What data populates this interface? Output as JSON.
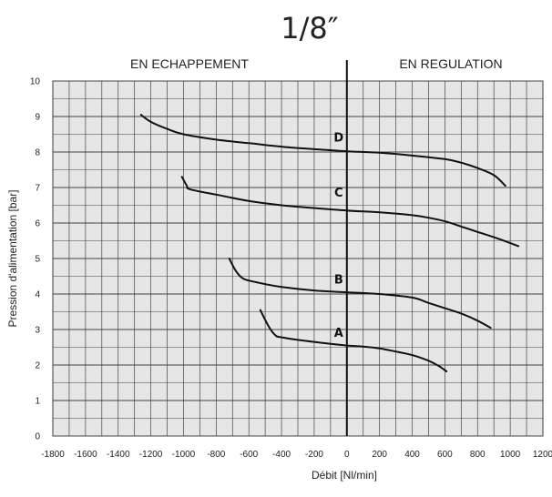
{
  "chart_data": {
    "type": "line",
    "title": "1/8″",
    "xlabel": "Débit [Nl/min]",
    "ylabel": "Pression d'alimentation [bar]",
    "xlim": [
      -1800,
      1200
    ],
    "ylim": [
      0,
      10
    ],
    "x_ticks": [
      -1800,
      -1600,
      -1400,
      -1200,
      -1000,
      -800,
      -600,
      -400,
      -200,
      0,
      200,
      400,
      600,
      800,
      1000,
      1200
    ],
    "y_ticks": [
      0,
      1,
      2,
      3,
      4,
      5,
      6,
      7,
      8,
      9,
      10
    ],
    "grid": true,
    "regions": {
      "left": "EN ECHAPPEMENT",
      "right": "EN REGULATION"
    },
    "series": [
      {
        "name": "D",
        "points": [
          [
            -1260,
            9.05
          ],
          [
            -1200,
            8.85
          ],
          [
            -1100,
            8.65
          ],
          [
            -1000,
            8.5
          ],
          [
            -800,
            8.35
          ],
          [
            -600,
            8.25
          ],
          [
            -400,
            8.15
          ],
          [
            -200,
            8.08
          ],
          [
            0,
            8.02
          ],
          [
            200,
            7.98
          ],
          [
            400,
            7.9
          ],
          [
            600,
            7.8
          ],
          [
            700,
            7.7
          ],
          [
            800,
            7.55
          ],
          [
            900,
            7.35
          ],
          [
            970,
            7.05
          ]
        ]
      },
      {
        "name": "C",
        "points": [
          [
            -1010,
            7.3
          ],
          [
            -980,
            7.05
          ],
          [
            -960,
            6.95
          ],
          [
            -800,
            6.8
          ],
          [
            -600,
            6.62
          ],
          [
            -400,
            6.5
          ],
          [
            -200,
            6.42
          ],
          [
            0,
            6.35
          ],
          [
            200,
            6.3
          ],
          [
            400,
            6.22
          ],
          [
            500,
            6.15
          ],
          [
            600,
            6.05
          ],
          [
            700,
            5.9
          ],
          [
            800,
            5.75
          ],
          [
            900,
            5.6
          ],
          [
            1050,
            5.35
          ]
        ]
      },
      {
        "name": "B",
        "points": [
          [
            -720,
            5.0
          ],
          [
            -680,
            4.65
          ],
          [
            -640,
            4.45
          ],
          [
            -600,
            4.38
          ],
          [
            -500,
            4.28
          ],
          [
            -400,
            4.2
          ],
          [
            -200,
            4.1
          ],
          [
            0,
            4.05
          ],
          [
            200,
            4.0
          ],
          [
            400,
            3.9
          ],
          [
            500,
            3.75
          ],
          [
            600,
            3.6
          ],
          [
            700,
            3.45
          ],
          [
            800,
            3.25
          ],
          [
            880,
            3.05
          ]
        ]
      },
      {
        "name": "A",
        "points": [
          [
            -530,
            3.55
          ],
          [
            -480,
            3.1
          ],
          [
            -440,
            2.85
          ],
          [
            -400,
            2.78
          ],
          [
            -200,
            2.65
          ],
          [
            0,
            2.55
          ],
          [
            100,
            2.52
          ],
          [
            200,
            2.47
          ],
          [
            300,
            2.38
          ],
          [
            400,
            2.28
          ],
          [
            500,
            2.12
          ],
          [
            560,
            1.98
          ],
          [
            610,
            1.82
          ]
        ]
      }
    ],
    "curve_labels": [
      {
        "text": "D",
        "x": -50,
        "y": 8.3
      },
      {
        "text": "C",
        "x": -50,
        "y": 6.75
      },
      {
        "text": "B",
        "x": -50,
        "y": 4.3
      },
      {
        "text": "A",
        "x": -50,
        "y": 2.8
      }
    ]
  }
}
